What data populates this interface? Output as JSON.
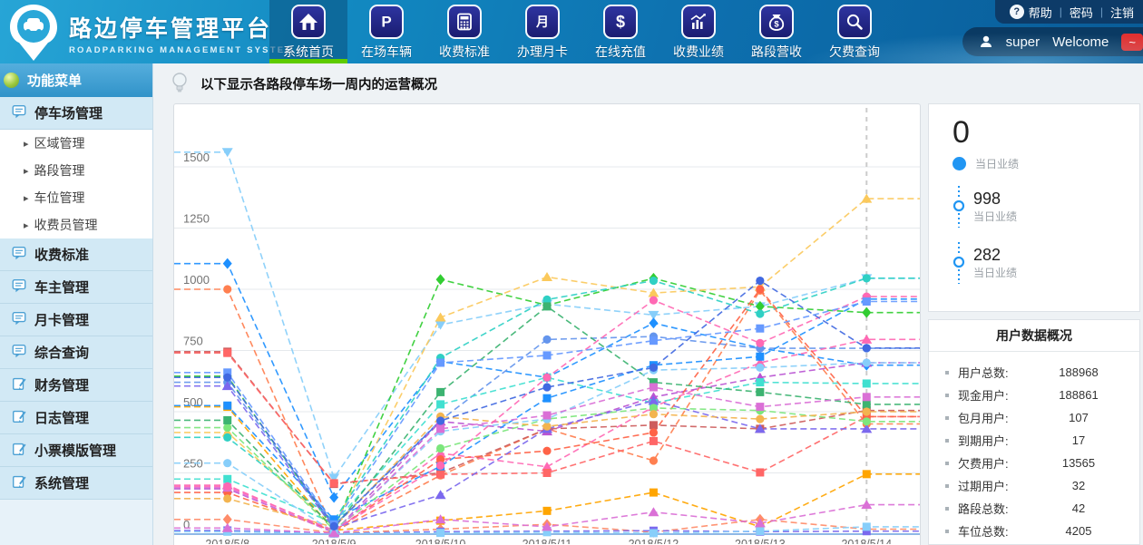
{
  "header": {
    "logo": {
      "title": "路边停车管理平台",
      "subtitle": "ROADPARKING MANAGEMENT SYSTEM"
    },
    "nav": [
      {
        "label": "系统首页",
        "icon": "home-icon",
        "active": true
      },
      {
        "label": "在场车辆",
        "icon": "parking-icon",
        "active": false
      },
      {
        "label": "收费标准",
        "icon": "calculator-icon",
        "active": false
      },
      {
        "label": "办理月卡",
        "icon": "month-card-icon",
        "active": false
      },
      {
        "label": "在线充值",
        "icon": "dollar-icon",
        "active": false
      },
      {
        "label": "收费业绩",
        "icon": "performance-chart-icon",
        "active": false
      },
      {
        "label": "路段营收",
        "icon": "moneybag-icon",
        "active": false
      },
      {
        "label": "欠费查询",
        "icon": "search-icon",
        "active": false
      }
    ],
    "links": {
      "help": "帮助",
      "password": "密码",
      "logout": "注销"
    },
    "user": {
      "name": "super",
      "welcome": "Welcome",
      "badge": "~"
    }
  },
  "sidebar": {
    "title": "功能菜单",
    "items": [
      {
        "type": "group",
        "icon": "bubble-icon",
        "label": "停车场管理"
      },
      {
        "type": "sub",
        "label": "区域管理"
      },
      {
        "type": "sub",
        "label": "路段管理"
      },
      {
        "type": "sub",
        "label": "车位管理"
      },
      {
        "type": "sub",
        "label": "收费员管理"
      },
      {
        "type": "group",
        "icon": "bubble-icon",
        "label": "收费标准"
      },
      {
        "type": "group",
        "icon": "bubble-icon",
        "label": "车主管理"
      },
      {
        "type": "group",
        "icon": "bubble-icon",
        "label": "月卡管理"
      },
      {
        "type": "group",
        "icon": "bubble-icon",
        "label": "综合查询"
      },
      {
        "type": "group",
        "icon": "pencil-icon",
        "label": "财务管理"
      },
      {
        "type": "group",
        "icon": "pencil-icon",
        "label": "日志管理"
      },
      {
        "type": "group",
        "icon": "pencil-icon",
        "label": "小票模版管理"
      },
      {
        "type": "group",
        "icon": "pencil-icon",
        "label": "系统管理"
      }
    ]
  },
  "tip": "以下显示各路段停车场一周内的运营概况",
  "chart_data": {
    "type": "line",
    "line_style": "dashed",
    "grid": true,
    "legend": "none",
    "categories": [
      "2018/5/8",
      "2018/5/9",
      "2018/5/10",
      "2018/5/11",
      "2018/5/12",
      "2018/5/13",
      "2018/5/14"
    ],
    "y_ticks": [
      0,
      250,
      500,
      750,
      1000,
      1250,
      1500
    ],
    "ylim": [
      0,
      1650
    ],
    "axis_pointer_category": "2018/5/14",
    "axis_line_color": "#8fb8e6",
    "series": [
      {
        "color": "#87cefa",
        "symbol": "triangle-down",
        "values": [
          1560,
          230,
          855,
          940,
          895,
          930,
          1045
        ]
      },
      {
        "color": "#1e90ff",
        "symbol": "diamond",
        "values": [
          1105,
          150,
          705,
          640,
          862,
          760,
          690
        ]
      },
      {
        "color": "#ff7f50",
        "symbol": "circle",
        "values": [
          1000,
          10,
          240,
          430,
          300,
          995,
          450
        ]
      },
      {
        "color": "#32cd32",
        "symbol": "diamond",
        "values": [
          645,
          20,
          1040,
          935,
          1045,
          930,
          905
        ]
      },
      {
        "color": "#fbc95c",
        "symbol": "triangle-up",
        "values": [
          415,
          30,
          885,
          1050,
          985,
          1010,
          1370
        ]
      },
      {
        "color": "#2fd0c4",
        "symbol": "circle",
        "values": [
          395,
          55,
          720,
          958,
          1035,
          900,
          1045
        ]
      },
      {
        "color": "#6495ed",
        "symbol": "circle",
        "values": [
          620,
          35,
          465,
          795,
          807,
          759,
          759
        ]
      },
      {
        "color": "#ff69b4",
        "symbol": "triangle-up",
        "values": [
          200,
          10,
          330,
          275,
          520,
          700,
          795
        ]
      },
      {
        "color": "#ba55d3",
        "symbol": "triangle-up",
        "values": [
          185,
          8,
          460,
          420,
          560,
          640,
          700
        ]
      },
      {
        "color": "#cd5c5c",
        "symbol": "square",
        "values": [
          745,
          205,
          250,
          430,
          445,
          430,
          505
        ]
      },
      {
        "color": "#ff6666",
        "symbol": "square",
        "values": [
          740,
          208,
          244,
          250,
          380,
          252,
          480
        ]
      },
      {
        "color": "#ffa500",
        "symbol": "square",
        "values": [
          520,
          15,
          55,
          95,
          170,
          30,
          245
        ]
      },
      {
        "color": "#40e0d0",
        "symbol": "square",
        "values": [
          225,
          45,
          530,
          640,
          535,
          620,
          615
        ]
      },
      {
        "color": "#1e90ff",
        "symbol": "square",
        "values": [
          525,
          60,
          277,
          555,
          690,
          725,
          960
        ]
      },
      {
        "color": "#ff6347",
        "symbol": "circle",
        "values": [
          170,
          12,
          305,
          340,
          415,
          1000,
          480
        ]
      },
      {
        "color": "#7b68ee",
        "symbol": "triangle-up",
        "values": [
          605,
          25,
          160,
          430,
          545,
          430,
          430
        ]
      },
      {
        "color": "#7ce67c",
        "symbol": "circle",
        "values": [
          435,
          18,
          350,
          470,
          515,
          505,
          460
        ]
      },
      {
        "color": "#3cb371",
        "symbol": "square",
        "values": [
          465,
          22,
          580,
          930,
          620,
          580,
          530
        ]
      },
      {
        "color": "#f3b44f",
        "symbol": "circle",
        "values": [
          145,
          28,
          480,
          440,
          490,
          470,
          500
        ]
      },
      {
        "color": "#87cefa",
        "symbol": "circle",
        "values": [
          290,
          8,
          420,
          470,
          670,
          680,
          700
        ]
      },
      {
        "color": "#da70d6",
        "symbol": "square",
        "values": [
          190,
          5,
          430,
          485,
          600,
          520,
          560
        ]
      },
      {
        "color": "#ff69b4",
        "symbol": "circle",
        "values": [
          195,
          15,
          280,
          640,
          955,
          780,
          970
        ]
      },
      {
        "color": "#6699ff",
        "symbol": "square",
        "values": [
          660,
          40,
          700,
          730,
          790,
          840,
          950
        ]
      },
      {
        "color": "#ff8c69",
        "symbol": "diamond",
        "values": [
          60,
          5,
          20,
          40,
          8,
          60,
          20
        ]
      },
      {
        "color": "#7b68ee",
        "symbol": "square",
        "values": [
          15,
          3,
          10,
          12,
          14,
          10,
          12
        ]
      },
      {
        "color": "#87cefa",
        "symbol": "square",
        "values": [
          10,
          2,
          5,
          8,
          4,
          12,
          30
        ]
      },
      {
        "color": "#da70d6",
        "symbol": "triangle-up",
        "values": [
          25,
          4,
          60,
          30,
          90,
          45,
          120
        ]
      },
      {
        "color": "#4169e1",
        "symbol": "circle",
        "values": [
          640,
          32,
          463,
          600,
          680,
          1035,
          760
        ]
      }
    ]
  },
  "summary": {
    "items": [
      {
        "value": "0",
        "label": "当日业绩",
        "icon": "dot-icon"
      },
      {
        "value": "998",
        "label": "当日业绩",
        "icon": "node-icon"
      },
      {
        "value": "282",
        "label": "当日业绩",
        "icon": "node-icon"
      }
    ]
  },
  "user_stats": {
    "title": "用户数据概况",
    "rows": [
      {
        "label": "用户总数:",
        "value": "188968"
      },
      {
        "label": "现金用户:",
        "value": "188861"
      },
      {
        "label": "包月用户:",
        "value": "107"
      },
      {
        "label": "到期用户:",
        "value": "17"
      },
      {
        "label": "欠费用户:",
        "value": "13565"
      },
      {
        "label": "过期用户:",
        "value": "32"
      },
      {
        "label": "路段总数:",
        "value": "42"
      },
      {
        "label": "车位总数:",
        "value": "4205"
      }
    ]
  }
}
